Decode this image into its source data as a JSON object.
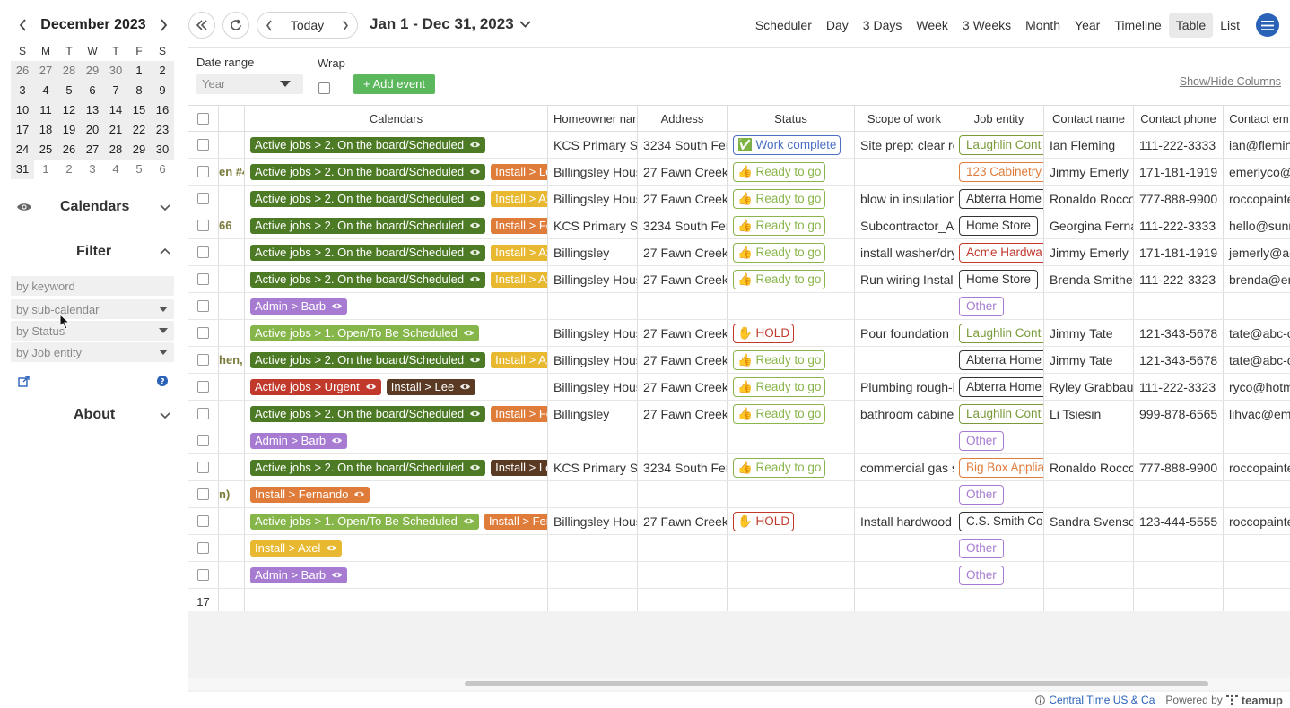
{
  "sidebar": {
    "mini_calendar": {
      "month_title": "December 2023",
      "weekdays": [
        "S",
        "M",
        "T",
        "W",
        "T",
        "F",
        "S"
      ],
      "weeks": [
        [
          [
            "26",
            "muted"
          ],
          [
            "27",
            "muted"
          ],
          [
            "28",
            "muted"
          ],
          [
            "29",
            "muted"
          ],
          [
            "30",
            "muted"
          ],
          [
            "1",
            ""
          ],
          [
            "2",
            ""
          ]
        ],
        [
          [
            "3",
            ""
          ],
          [
            "4",
            ""
          ],
          [
            "5",
            ""
          ],
          [
            "6",
            ""
          ],
          [
            "7",
            ""
          ],
          [
            "8",
            ""
          ],
          [
            "9",
            ""
          ]
        ],
        [
          [
            "10",
            ""
          ],
          [
            "11",
            ""
          ],
          [
            "12",
            ""
          ],
          [
            "13",
            ""
          ],
          [
            "14",
            ""
          ],
          [
            "15",
            ""
          ],
          [
            "16",
            ""
          ]
        ],
        [
          [
            "17",
            ""
          ],
          [
            "18",
            ""
          ],
          [
            "19",
            ""
          ],
          [
            "20",
            ""
          ],
          [
            "21",
            ""
          ],
          [
            "22",
            ""
          ],
          [
            "23",
            ""
          ]
        ],
        [
          [
            "24",
            ""
          ],
          [
            "25",
            ""
          ],
          [
            "26",
            ""
          ],
          [
            "27",
            ""
          ],
          [
            "28",
            ""
          ],
          [
            "29",
            ""
          ],
          [
            "30",
            ""
          ]
        ],
        [
          [
            "31",
            ""
          ],
          [
            "1",
            "outside"
          ],
          [
            "2",
            "outside"
          ],
          [
            "3",
            "outside"
          ],
          [
            "4",
            "outside"
          ],
          [
            "5",
            "outside"
          ],
          [
            "6",
            "outside"
          ]
        ]
      ]
    },
    "calendars_label": "Calendars",
    "filter_label": "Filter",
    "filter_fields": {
      "keyword": "by keyword",
      "sub_calendar": "by sub-calendar",
      "status": "by Status",
      "job_entity": "by Job entity"
    },
    "about_label": "About"
  },
  "toolbar": {
    "today_label": "Today",
    "range_title": "Jan 1 - Dec 31, 2023",
    "views": [
      "Scheduler",
      "Day",
      "3 Days",
      "Week",
      "3 Weeks",
      "Month",
      "Year",
      "Timeline",
      "Table",
      "List"
    ],
    "active_view": "Table"
  },
  "controls": {
    "date_range_label": "Date range",
    "date_range_value": "Year",
    "wrap_label": "Wrap",
    "add_event_label": "+ Add event",
    "show_hide_columns": "Show/Hide Columns"
  },
  "table": {
    "headers": [
      "",
      "",
      "Calendars",
      "Homeowner nar",
      "Address",
      "Status",
      "Scope of work",
      "Job entity",
      "Contact name",
      "Contact phone",
      "Contact em"
    ],
    "rows": [
      {
        "title": "",
        "chips": [
          [
            "Active jobs > 2. On the board/Scheduled",
            "#4c7a25",
            true
          ]
        ],
        "homeowner": "KCS Primary Sc",
        "address": "3234 South Fer",
        "status": [
          "✅ Work complete",
          "#4a6fc4"
        ],
        "scope": "Site prep: clear ro",
        "entity": [
          "Laughlin Cont",
          "#7a9a3a"
        ],
        "contact": "Ian Fleming",
        "phone": "111-222-3333",
        "email": "ian@flemin"
      },
      {
        "title": "en #4",
        "chips": [
          [
            "Active jobs > 2. On the board/Scheduled",
            "#4c7a25",
            true
          ],
          [
            "Install > Lee",
            "#e07c3a",
            false
          ]
        ],
        "homeowner": "Billingsley Hous",
        "address": "27 Fawn Creek",
        "status": [
          "👍 Ready to go",
          "#8ab54a"
        ],
        "scope": "",
        "entity": [
          "123 Cabinetry",
          "#e07c3a"
        ],
        "contact": "Jimmy Emerly",
        "phone": "171-181-1919",
        "email": "emerlyco@"
      },
      {
        "title": "",
        "chips": [
          [
            "Active jobs > 2. On the board/Scheduled",
            "#4c7a25",
            true
          ],
          [
            "Install > Axel",
            "#e8b930",
            false
          ]
        ],
        "homeowner": "Billingsley Hous",
        "address": "27 Fawn Creek",
        "status": [
          "👍 Ready to go",
          "#8ab54a"
        ],
        "scope": "blow in insulation",
        "entity": [
          "Abterra Home",
          "#333333"
        ],
        "contact": "Ronaldo Rocco",
        "phone": "777-888-9900",
        "email": "roccopainte"
      },
      {
        "title": "66",
        "chips": [
          [
            "Active jobs > 2. On the board/Scheduled",
            "#4c7a25",
            true
          ],
          [
            "Install > Fernando",
            "#e07c3a",
            false
          ]
        ],
        "homeowner": "KCS Primary Sc",
        "address": "3234 South Fer",
        "status": [
          "👍 Ready to go",
          "#8ab54a"
        ],
        "scope": "Subcontractor_Ag",
        "entity": [
          "Home Store",
          "#333333"
        ],
        "contact": "Georgina Ferna",
        "phone": "111-222-3333",
        "email": "hello@sunn"
      },
      {
        "title": "",
        "chips": [
          [
            "Active jobs > 2. On the board/Scheduled",
            "#4c7a25",
            true
          ],
          [
            "Install > Axel",
            "#e8b930",
            false
          ]
        ],
        "homeowner": "Billingsley",
        "address": "27 Fawn Creek",
        "status": [
          "👍 Ready to go",
          "#8ab54a"
        ],
        "scope": "install washer/dry",
        "entity": [
          "Acme Hardwa",
          "#c0392b"
        ],
        "contact": "Jimmy Emerly",
        "phone": "171-181-1919",
        "email": "jemerly@ac"
      },
      {
        "title": "",
        "chips": [
          [
            "Active jobs > 2. On the board/Scheduled",
            "#4c7a25",
            true
          ],
          [
            "Install > Axel",
            "#e8b930",
            false
          ]
        ],
        "homeowner": "Billingsley Hous",
        "address": "27 Fawn Creek",
        "status": [
          "👍 Ready to go",
          "#8ab54a"
        ],
        "scope": "Run wiring Install",
        "entity": [
          "Home Store",
          "#333333"
        ],
        "contact": "Brenda Smither",
        "phone": "111-222-3323",
        "email": "brenda@em"
      },
      {
        "title": "",
        "chips": [
          [
            "Admin > Barb",
            "#a77bd1",
            true
          ]
        ],
        "homeowner": "",
        "address": "",
        "status": null,
        "scope": "",
        "entity": [
          "Other",
          "#a77bd1"
        ],
        "contact": "",
        "phone": "",
        "email": ""
      },
      {
        "title": "",
        "chips": [
          [
            "Active jobs > 1. Open/To Be Scheduled",
            "#86b64a",
            true
          ]
        ],
        "homeowner": "Billingsley Hous",
        "address": "27 Fawn Creek",
        "status": [
          "✋ HOLD",
          "#c0392b"
        ],
        "scope": "Pour foundation F",
        "entity": [
          "Laughlin Cont",
          "#7a9a3a"
        ],
        "contact": "Jimmy Tate",
        "phone": "121-343-5678",
        "email": "tate@abc-c"
      },
      {
        "title": "hen,",
        "chips": [
          [
            "Active jobs > 2. On the board/Scheduled",
            "#4c7a25",
            true
          ],
          [
            "Install > Axel",
            "#e8b930",
            false
          ]
        ],
        "homeowner": "Billingsley Hous",
        "address": "27 Fawn Creek",
        "status": [
          "👍 Ready to go",
          "#8ab54a"
        ],
        "scope": "",
        "entity": [
          "Abterra Home",
          "#333333"
        ],
        "contact": "Jimmy Tate",
        "phone": "121-343-5678",
        "email": "tate@abc-c"
      },
      {
        "title": "",
        "chips": [
          [
            "Active jobs > Urgent",
            "#c0392b",
            true
          ],
          [
            "Install > Lee",
            "#5a3a22",
            true
          ]
        ],
        "homeowner": "Billingsley Hous",
        "address": "27 Fawn Creek",
        "status": [
          "👍 Ready to go",
          "#8ab54a"
        ],
        "scope": "Plumbing rough-i",
        "entity": [
          "Abterra Home",
          "#333333"
        ],
        "contact": "Ryley Grabbau",
        "phone": "111-222-3323",
        "email": "ryco@hotm"
      },
      {
        "title": "",
        "chips": [
          [
            "Active jobs > 2. On the board/Scheduled",
            "#4c7a25",
            true
          ],
          [
            "Install > Fernando",
            "#e07c3a",
            false
          ]
        ],
        "homeowner": "Billingsley",
        "address": "27 Fawn Creek",
        "status": [
          "👍 Ready to go",
          "#8ab54a"
        ],
        "scope": "bathroom cabine",
        "entity": [
          "Laughlin Cont",
          "#7a9a3a"
        ],
        "contact": "Li Tsiesin",
        "phone": "999-878-6565",
        "email": "lihvac@em"
      },
      {
        "title": "",
        "chips": [
          [
            "Admin > Barb",
            "#a77bd1",
            true
          ]
        ],
        "homeowner": "",
        "address": "",
        "status": null,
        "scope": "",
        "entity": [
          "Other",
          "#a77bd1"
        ],
        "contact": "",
        "phone": "",
        "email": ""
      },
      {
        "title": "",
        "chips": [
          [
            "Active jobs > 2. On the board/Scheduled",
            "#4c7a25",
            true
          ],
          [
            "Install > Lee",
            "#5a3a22",
            false
          ]
        ],
        "homeowner": "KCS Primary Sc",
        "address": "3234 South Fer",
        "status": [
          "👍 Ready to go",
          "#8ab54a"
        ],
        "scope": "commercial gas s",
        "entity": [
          "Big Box Applia",
          "#e07c3a"
        ],
        "contact": "Ronaldo Rocco",
        "phone": "777-888-9900",
        "email": "roccopainte"
      },
      {
        "title": "n)",
        "chips": [
          [
            "Install > Fernando",
            "#e07c3a",
            true
          ]
        ],
        "homeowner": "",
        "address": "",
        "status": null,
        "scope": "",
        "entity": [
          "Other",
          "#a77bd1"
        ],
        "contact": "",
        "phone": "",
        "email": ""
      },
      {
        "title": "",
        "chips": [
          [
            "Active jobs > 1. Open/To Be Scheduled",
            "#86b64a",
            true
          ],
          [
            "Install > Fernando",
            "#e07c3a",
            false
          ]
        ],
        "homeowner": "Billingsley Hous",
        "address": "27 Fawn Creek",
        "status": [
          "✋ HOLD",
          "#c0392b"
        ],
        "scope": "Install hardwood",
        "entity": [
          "C.S. Smith Co",
          "#333333"
        ],
        "contact": "Sandra Svenso",
        "phone": "123-444-5555",
        "email": "roccopainte"
      },
      {
        "title": "",
        "chips": [
          [
            "Install > Axel",
            "#e8b930",
            true
          ]
        ],
        "homeowner": "",
        "address": "",
        "status": null,
        "scope": "",
        "entity": [
          "Other",
          "#a77bd1"
        ],
        "contact": "",
        "phone": "",
        "email": ""
      },
      {
        "title": "",
        "chips": [
          [
            "Admin > Barb",
            "#a77bd1",
            true
          ]
        ],
        "homeowner": "",
        "address": "",
        "status": null,
        "scope": "",
        "entity": [
          "Other",
          "#a77bd1"
        ],
        "contact": "",
        "phone": "",
        "email": ""
      }
    ],
    "row_count": "17"
  },
  "footer": {
    "timezone": "Central Time US & Ca",
    "powered_by": "Powered by",
    "brand": "teamup"
  }
}
